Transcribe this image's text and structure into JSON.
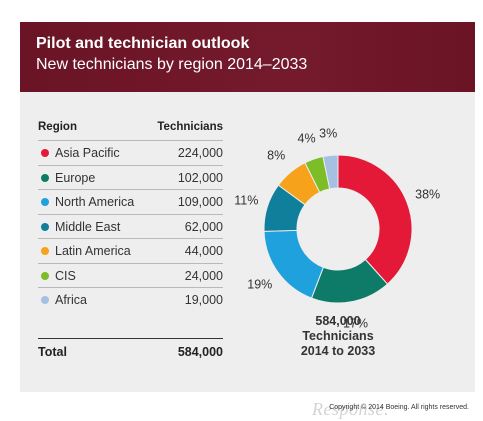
{
  "header": {
    "title": "Pilot and technician outlook",
    "subtitle": "New technicians by region 2014–2033"
  },
  "table": {
    "col_region": "Region",
    "col_technicians": "Technicians",
    "rows": [
      {
        "region": "Asia Pacific",
        "value": "224,000",
        "color": "#e31937"
      },
      {
        "region": "Europe",
        "value": "102,000",
        "color": "#0e7b68"
      },
      {
        "region": "North America",
        "value": "109,000",
        "color": "#1ea1dc"
      },
      {
        "region": "Middle East",
        "value": "62,000",
        "color": "#0f7f9c"
      },
      {
        "region": "Latin America",
        "value": "44,000",
        "color": "#f6a21a"
      },
      {
        "region": "CIS",
        "value": "24,000",
        "color": "#7cbd28"
      },
      {
        "region": "Africa",
        "value": "19,000",
        "color": "#a6c0e3"
      }
    ],
    "total_label": "Total",
    "total_value": "584,000"
  },
  "center_label": {
    "line1": "584,000",
    "line2": "Technicians",
    "line3": "2014 to 2033"
  },
  "chart_data": {
    "type": "pie",
    "donut": true,
    "categories": [
      "Asia Pacific",
      "Europe",
      "North America",
      "Middle East",
      "Latin America",
      "CIS",
      "Africa"
    ],
    "values": [
      224000,
      102000,
      109000,
      62000,
      44000,
      24000,
      19000
    ],
    "labels": [
      "38%",
      "17%",
      "19%",
      "11%",
      "8%",
      "4%",
      "3%"
    ],
    "colors": [
      "#e31937",
      "#0e7b68",
      "#1ea1dc",
      "#0f7f9c",
      "#f6a21a",
      "#7cbd28",
      "#a6c0e3"
    ],
    "total": 584000
  },
  "footer": {
    "logo": "Response.",
    "copyright": "Copyright © 2014 Boeing. All rights reserved."
  }
}
